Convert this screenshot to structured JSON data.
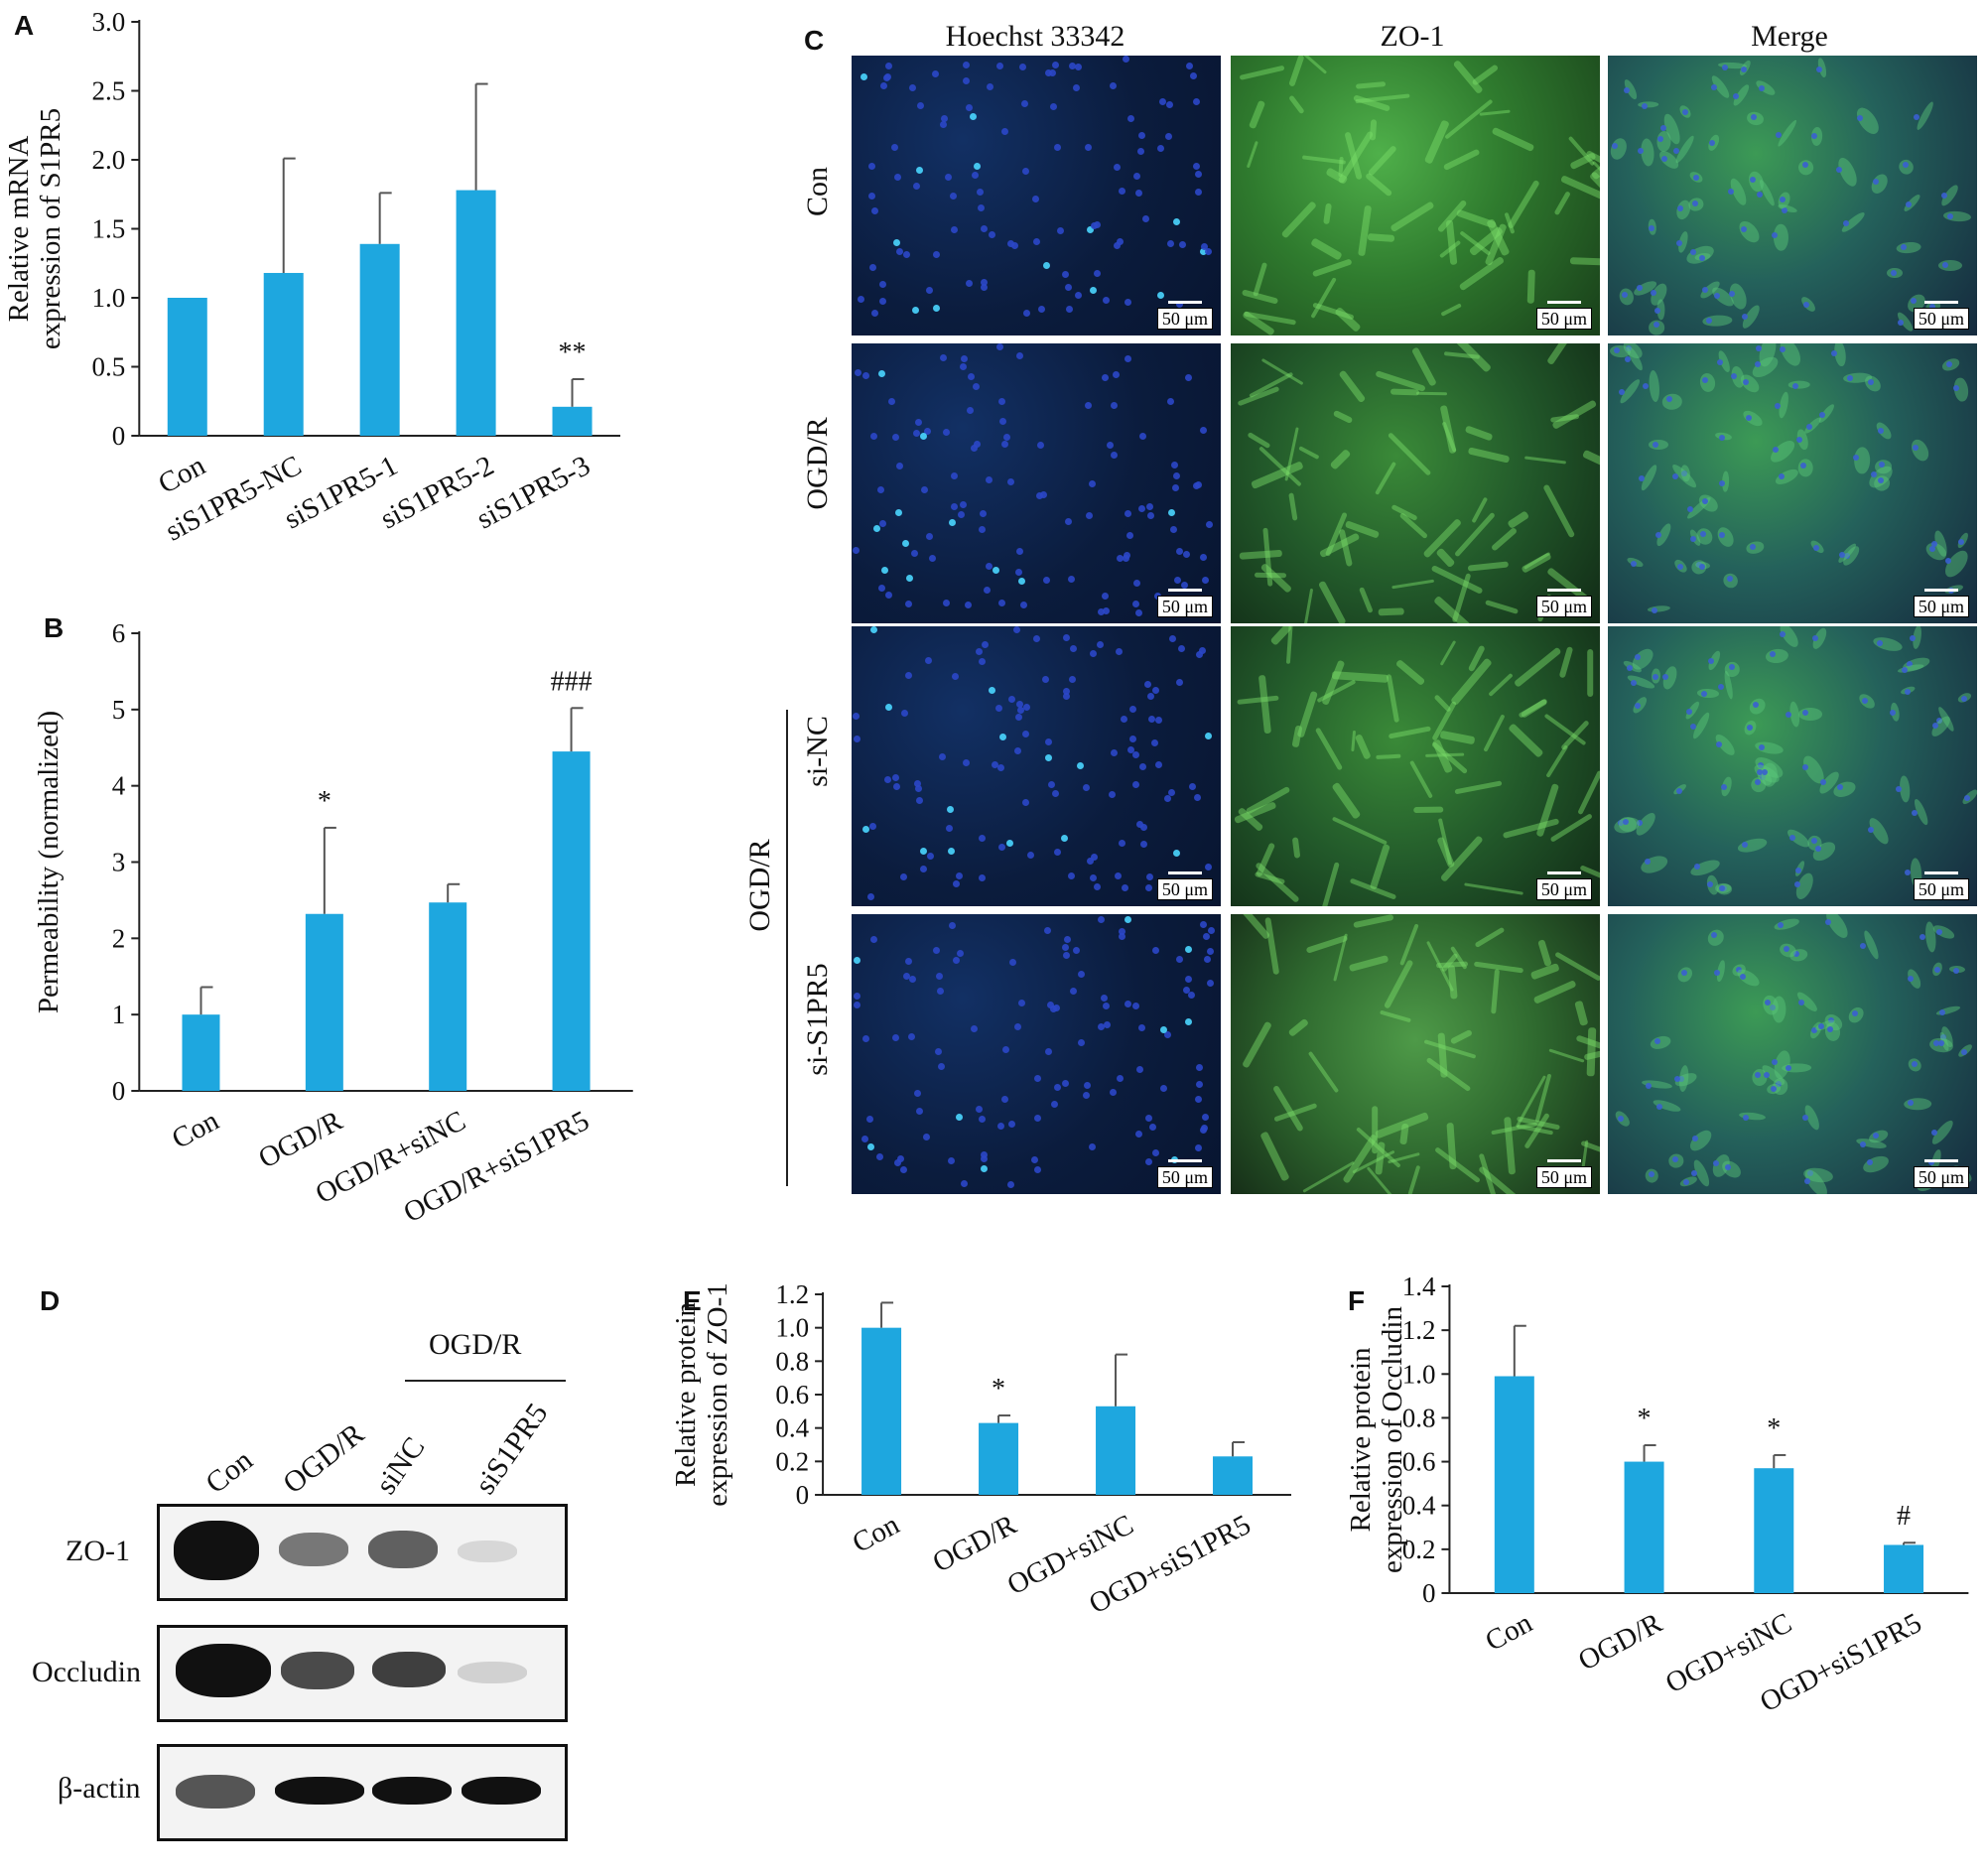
{
  "panels": {
    "A": "A",
    "B": "B",
    "C": "C",
    "D": "D",
    "E": "E",
    "F": "F"
  },
  "chart_data": [
    {
      "panel": "A",
      "type": "bar",
      "categories": [
        "Con",
        "siS1PR5-NC",
        "siS1PR5-1",
        "siS1PR5-2",
        "siS1PR5-3"
      ],
      "values": [
        1.0,
        1.18,
        1.39,
        1.78,
        0.21
      ],
      "errors": [
        0.0,
        0.83,
        0.37,
        0.77,
        0.2
      ],
      "annotations": [
        "",
        "",
        "",
        "",
        "**"
      ],
      "ylabel_lines": [
        "Relative mRNA",
        "expression of S1PR5"
      ],
      "ylim": [
        0,
        3.0
      ],
      "yticks": [
        "0",
        "0.5",
        "1.0",
        "1.5",
        "2.0",
        "2.5",
        "3.0"
      ],
      "color": "#1ea7df"
    },
    {
      "panel": "B",
      "type": "bar",
      "categories": [
        "Con",
        "OGD/R",
        "OGD/R+siNC",
        "OGD/R+siS1PR5"
      ],
      "values": [
        1.0,
        2.32,
        2.47,
        4.45
      ],
      "errors": [
        0.36,
        1.13,
        0.24,
        0.57
      ],
      "annotations": [
        "",
        "*",
        "",
        "###"
      ],
      "ylabel_lines": [
        "Permeability (normalized)"
      ],
      "ylim": [
        0,
        6
      ],
      "yticks": [
        "0",
        "1",
        "2",
        "3",
        "4",
        "5",
        "6"
      ],
      "color": "#1ea7df"
    },
    {
      "panel": "E",
      "type": "bar",
      "categories": [
        "Con",
        "OGD/R",
        "OGD+siNC",
        "OGD+siS1PR5"
      ],
      "values": [
        1.0,
        0.43,
        0.53,
        0.23
      ],
      "errors": [
        0.15,
        0.045,
        0.31,
        0.085
      ],
      "annotations": [
        "",
        "*",
        "",
        ""
      ],
      "ylabel_lines": [
        "Relative protein",
        "expression of ZO-1"
      ],
      "ylim": [
        0,
        1.2
      ],
      "yticks": [
        "0",
        "0.2",
        "0.4",
        "0.6",
        "0.8",
        "1.0",
        "1.2"
      ],
      "color": "#1ea7df"
    },
    {
      "panel": "F",
      "type": "bar",
      "categories": [
        "Con",
        "OGD/R",
        "OGD+siNC",
        "OGD+siS1PR5"
      ],
      "values": [
        0.99,
        0.6,
        0.57,
        0.22
      ],
      "errors": [
        0.23,
        0.075,
        0.06,
        0.01
      ],
      "annotations": [
        "",
        "*",
        "*",
        "#"
      ],
      "ylabel_lines": [
        "Relative protein",
        "expression of Occludin"
      ],
      "ylim": [
        0,
        1.4
      ],
      "yticks": [
        "0",
        "0.2",
        "0.4",
        "0.6",
        "0.8",
        "1.0",
        "1.2",
        "1.4"
      ],
      "color": "#1ea7df"
    }
  ],
  "microscopy": {
    "columns": [
      "Hoechst 33342",
      "ZO-1",
      "Merge"
    ],
    "rows": [
      "Con",
      "OGD/R",
      "si-NC",
      "si-S1PR5"
    ],
    "group_label": "OGD/R",
    "scale_bar": "50 μm"
  },
  "western": {
    "group_label": "OGD/R",
    "lanes": [
      "Con",
      "OGD/R",
      "siNC",
      "siS1PR5"
    ],
    "proteins": [
      "ZO-1",
      "Occludin",
      "β-actin"
    ]
  }
}
